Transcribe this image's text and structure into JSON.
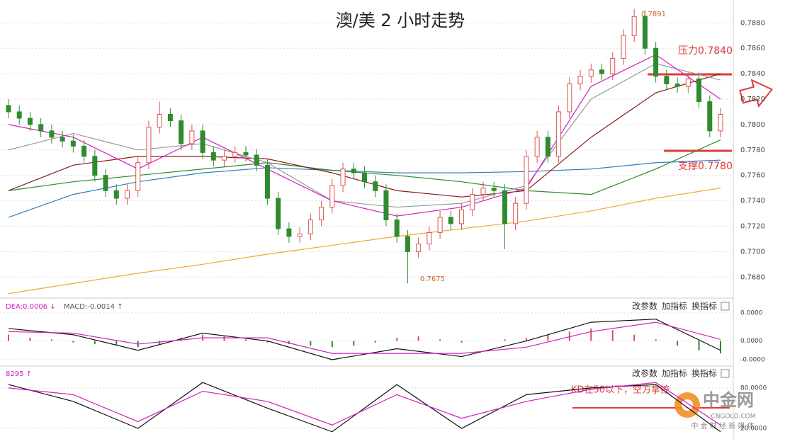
{
  "chart_data": {
    "type": "candlestick",
    "title": "澳/美 2 小时走势",
    "ylim": [
      0.7664,
      0.7898
    ],
    "yticks": [
      {
        "value": 0.768,
        "label": "0.7680"
      },
      {
        "value": 0.77,
        "label": "0.7700"
      },
      {
        "value": 0.772,
        "label": "0.7720"
      },
      {
        "value": 0.774,
        "label": "0.7740"
      },
      {
        "value": 0.776,
        "label": "0.7760"
      },
      {
        "value": 0.778,
        "label": "0.7780"
      },
      {
        "value": 0.78,
        "label": "0.7800"
      },
      {
        "value": 0.782,
        "label": "0.7820"
      },
      {
        "value": 0.784,
        "label": "0.7840"
      },
      {
        "value": 0.786,
        "label": "0.7860"
      },
      {
        "value": 0.788,
        "label": "0.7880"
      }
    ],
    "grid": true,
    "up_color": "#d9534f",
    "down_color": "#2e8b2e",
    "open": [
      0.7815,
      0.781,
      0.7805,
      0.78,
      0.7795,
      0.779,
      0.7787,
      0.7783,
      0.7775,
      0.776,
      0.7748,
      0.7742,
      0.7748,
      0.777,
      0.7798,
      0.7808,
      0.7803,
      0.7785,
      0.7795,
      0.7778,
      0.7772,
      0.7775,
      0.7778,
      0.7776,
      0.7768,
      0.7742,
      0.7718,
      0.7712,
      0.7714,
      0.7725,
      0.7735,
      0.7752,
      0.7765,
      0.7762,
      0.7755,
      0.7748,
      0.7725,
      0.7712,
      0.77,
      0.7706,
      0.7715,
      0.7727,
      0.7722,
      0.7733,
      0.7745,
      0.775,
      0.7748,
      0.7722,
      0.7738,
      0.7775,
      0.779,
      0.7775,
      0.781,
      0.7832,
      0.7838,
      0.7843,
      0.784,
      0.7852,
      0.787,
      0.7885,
      0.786,
      0.7838,
      0.7832,
      0.783,
      0.7836,
      0.7818,
      0.7795
    ],
    "high": [
      0.782,
      0.7815,
      0.781,
      0.7805,
      0.78,
      0.7795,
      0.7792,
      0.7788,
      0.778,
      0.7765,
      0.7753,
      0.7753,
      0.7775,
      0.7803,
      0.7818,
      0.7813,
      0.7808,
      0.78,
      0.78,
      0.7783,
      0.778,
      0.7783,
      0.7783,
      0.7781,
      0.7773,
      0.7747,
      0.7723,
      0.7719,
      0.773,
      0.774,
      0.7757,
      0.777,
      0.777,
      0.7767,
      0.776,
      0.7753,
      0.773,
      0.7717,
      0.7711,
      0.772,
      0.7732,
      0.7732,
      0.7738,
      0.775,
      0.7755,
      0.7755,
      0.7753,
      0.7743,
      0.778,
      0.7795,
      0.7795,
      0.7815,
      0.7837,
      0.7843,
      0.7848,
      0.7848,
      0.7857,
      0.7875,
      0.7891,
      0.789,
      0.7865,
      0.7843,
      0.7837,
      0.7841,
      0.7841,
      0.7823,
      0.7813
    ],
    "low": [
      0.7805,
      0.78,
      0.7795,
      0.779,
      0.7785,
      0.7782,
      0.7778,
      0.777,
      0.7755,
      0.7743,
      0.7737,
      0.7737,
      0.7743,
      0.7765,
      0.7793,
      0.7798,
      0.778,
      0.778,
      0.7773,
      0.7767,
      0.7767,
      0.777,
      0.7771,
      0.7763,
      0.7737,
      0.7713,
      0.7707,
      0.7707,
      0.7709,
      0.772,
      0.773,
      0.7747,
      0.7757,
      0.775,
      0.7743,
      0.772,
      0.7707,
      0.7675,
      0.7695,
      0.7701,
      0.771,
      0.7717,
      0.7717,
      0.7728,
      0.774,
      0.7743,
      0.7702,
      0.7717,
      0.7733,
      0.777,
      0.777,
      0.777,
      0.7805,
      0.7827,
      0.7833,
      0.7835,
      0.7835,
      0.7847,
      0.7865,
      0.7855,
      0.7833,
      0.7827,
      0.7825,
      0.7825,
      0.7813,
      0.779,
      0.779
    ],
    "close": [
      0.781,
      0.7805,
      0.78,
      0.7795,
      0.779,
      0.7787,
      0.7783,
      0.7775,
      0.776,
      0.7748,
      0.7742,
      0.7748,
      0.777,
      0.7798,
      0.7808,
      0.7803,
      0.7785,
      0.7795,
      0.7778,
      0.7772,
      0.7775,
      0.7778,
      0.7776,
      0.7768,
      0.7742,
      0.7718,
      0.7712,
      0.7714,
      0.7725,
      0.7735,
      0.7752,
      0.7765,
      0.7762,
      0.7755,
      0.7748,
      0.7725,
      0.7712,
      0.77,
      0.7706,
      0.7715,
      0.7727,
      0.7722,
      0.7733,
      0.7745,
      0.775,
      0.7748,
      0.7722,
      0.7738,
      0.7775,
      0.779,
      0.7775,
      0.781,
      0.7832,
      0.7838,
      0.7843,
      0.784,
      0.7852,
      0.787,
      0.7885,
      0.786,
      0.7838,
      0.7832,
      0.783,
      0.7836,
      0.7818,
      0.7795,
      0.7808
    ],
    "ma_x": [
      0,
      6,
      12,
      18,
      24,
      30,
      36,
      42,
      48,
      54,
      60,
      66
    ],
    "ma": [
      {
        "color": "#f0a830",
        "values": [
          0.7667,
          0.7675,
          0.7683,
          0.769,
          0.7698,
          0.7705,
          0.7712,
          0.7718,
          0.7724,
          0.7732,
          0.7742,
          0.775
        ]
      },
      {
        "color": "#2f7fc0",
        "values": [
          0.7727,
          0.7745,
          0.7755,
          0.7762,
          0.7766,
          0.7764,
          0.7762,
          0.7762,
          0.7763,
          0.7765,
          0.777,
          0.7772
        ]
      },
      {
        "color": "#2e8b2e",
        "values": [
          0.7748,
          0.7755,
          0.776,
          0.7765,
          0.777,
          0.7764,
          0.776,
          0.7755,
          0.7748,
          0.7745,
          0.7765,
          0.7788
        ]
      },
      {
        "color": "#8b1a1a",
        "values": [
          0.7748,
          0.7768,
          0.7775,
          0.7775,
          0.7773,
          0.7762,
          0.7748,
          0.7743,
          0.7748,
          0.779,
          0.7825,
          0.784
        ]
      },
      {
        "color": "#999999",
        "values": [
          0.778,
          0.7793,
          0.778,
          0.7785,
          0.777,
          0.774,
          0.7735,
          0.7738,
          0.7752,
          0.782,
          0.7848,
          0.7835
        ]
      },
      {
        "color": "#d020c0",
        "values": [
          0.78,
          0.779,
          0.7765,
          0.779,
          0.7765,
          0.774,
          0.7728,
          0.7735,
          0.775,
          0.783,
          0.7855,
          0.782
        ]
      }
    ],
    "annotations": {
      "high": "0.7891",
      "low": "0.7675",
      "resistance": "压力0.7840",
      "support": "支撑0.7780"
    },
    "macd": {
      "dea_label": "DEA:0.0006 ↓",
      "macd_label": "MACD:-0.0014 ↑",
      "ylim": [
        -0.00152,
        0.00234
      ],
      "yticks": [
        {
          "value": 0.0018,
          "label": "0.0000"
        },
        {
          "value": 0,
          "label": "0.0000"
        },
        {
          "value": -0.0012,
          "label": "-0.0000"
        }
      ],
      "dif": [
        0.0008,
        0.0004,
        -0.0006,
        0.0005,
        0.0,
        -0.0012,
        -0.0005,
        -0.001,
        0.0,
        0.0012,
        0.0014,
        -0.0006
      ],
      "dea": [
        0.0006,
        0.0005,
        -0.0002,
        0.0002,
        0.0002,
        -0.0008,
        -0.0008,
        -0.0008,
        -0.0004,
        0.0006,
        0.0012,
        0.0001
      ],
      "hist_x": [
        0,
        2,
        4,
        6,
        8,
        10,
        12,
        14,
        16,
        18,
        20,
        22,
        24,
        26,
        28,
        30,
        32,
        34,
        36,
        38,
        40,
        42,
        44,
        46,
        48,
        50,
        52,
        54,
        56,
        58,
        60,
        62,
        64,
        66
      ],
      "hist": [
        0.0004,
        0.0002,
        0.0001,
        -0.0001,
        -0.0002,
        -0.0003,
        -0.0004,
        -0.0002,
        0.0002,
        0.0004,
        0.0003,
        0.0001,
        -0.0001,
        -0.0002,
        -0.0003,
        -0.0004,
        -0.0003,
        -0.0001,
        0.0002,
        0.0003,
        0.0001,
        -0.0001,
        0.0,
        0.0001,
        0.0002,
        0.0004,
        0.0006,
        0.0008,
        0.0007,
        0.0004,
        0.0001,
        -0.0003,
        -0.0006,
        -0.0008
      ]
    },
    "kd": {
      "label": "8295 ↑",
      "note": "KD在50以下，空方掌控",
      "ylim": [
        9.5,
        104
      ],
      "yticks": [
        {
          "value": 80,
          "label": "80.0000"
        },
        {
          "value": 20,
          "label": "20.0000"
        }
      ],
      "k": [
        85,
        60,
        20,
        88,
        50,
        15,
        85,
        20,
        70,
        80,
        85,
        15
      ],
      "d": [
        80,
        70,
        30,
        75,
        60,
        25,
        70,
        35,
        60,
        78,
        88,
        25
      ]
    },
    "buttons": [
      "改参数",
      "加指标",
      "换指标"
    ],
    "watermark": {
      "logo": "中金网",
      "site": "CNGOLD.COM",
      "slogan": "中 金 财 经 新 媒 体"
    }
  }
}
